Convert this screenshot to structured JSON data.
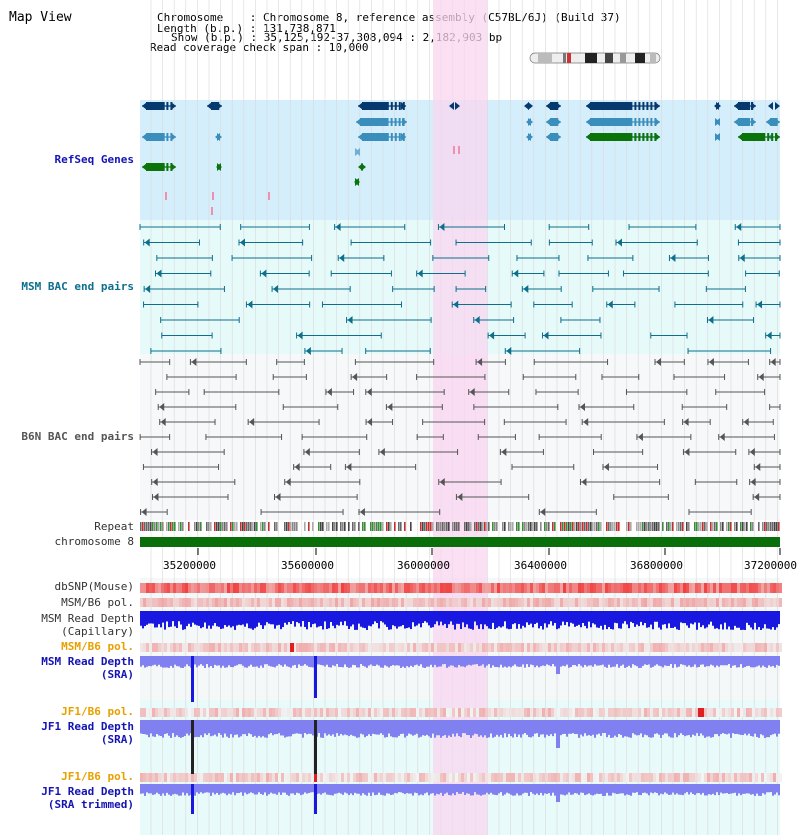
{
  "page": {
    "title": "Map View"
  },
  "info": {
    "chromosome_key": "Chromosome",
    "chromosome_val": ": Chromosome 8, reference assembly (C57BL/6J) (Build 37)",
    "length_key": "Length (b.p.)",
    "length_val": ": 131,738,871",
    "show_key": "Show (b.p.)",
    "show_val": ": 35,125,192-37,308,094 : 2,182,903 bp",
    "span_line": "Read coverage check span : 10,000"
  },
  "tracks": {
    "refseq": "RefSeq Genes",
    "msm_bac": "MSM BAC end pairs",
    "b6n_bac": "B6N BAC end pairs",
    "repeat": "Repeat",
    "chromosome": "chromosome 8",
    "dbsnp": "dbSNP(Mouse)",
    "msm_b6_pol_1": "MSM/B6 pol.",
    "msm_depth_cap_1": "MSM Read Depth",
    "msm_depth_cap_2": "(Capillary)",
    "msm_b6_pol_2": "MSM/B6 pol.",
    "msm_depth_sra_1": "MSM Read Depth",
    "msm_depth_sra_2": "(SRA)",
    "jf1_b6_pol_1": "JF1/B6 pol.",
    "jf1_depth_sra_1": "JF1 Read Depth",
    "jf1_depth_sra_2": "(SRA)",
    "jf1_b6_pol_2": "JF1/B6 pol.",
    "jf1_depth_trim_1": "JF1 Read Depth",
    "jf1_depth_trim_2": "(SRA trimmed)"
  },
  "ruler": {
    "ticks": [
      "35200000",
      "35600000",
      "36000000",
      "36400000",
      "36800000",
      "37200000"
    ]
  },
  "colors": {
    "refseq_bg": "#d4eefb",
    "msm_bg": "#e6fafa",
    "b6n_bg": "#f6f8fa",
    "highlight": "#f9d6f0",
    "chromosome_bar": "#0a6e0a",
    "gene_blue": "#063a6e",
    "gene_mid": "#3a8ebc",
    "gene_green": "#0a730a",
    "msm_pair": "#0d6f8c",
    "b6n_pair": "#555555",
    "depth_blue": "#1818e0",
    "depth_light": "#8080f0",
    "snp_red": "#f04040"
  }
}
